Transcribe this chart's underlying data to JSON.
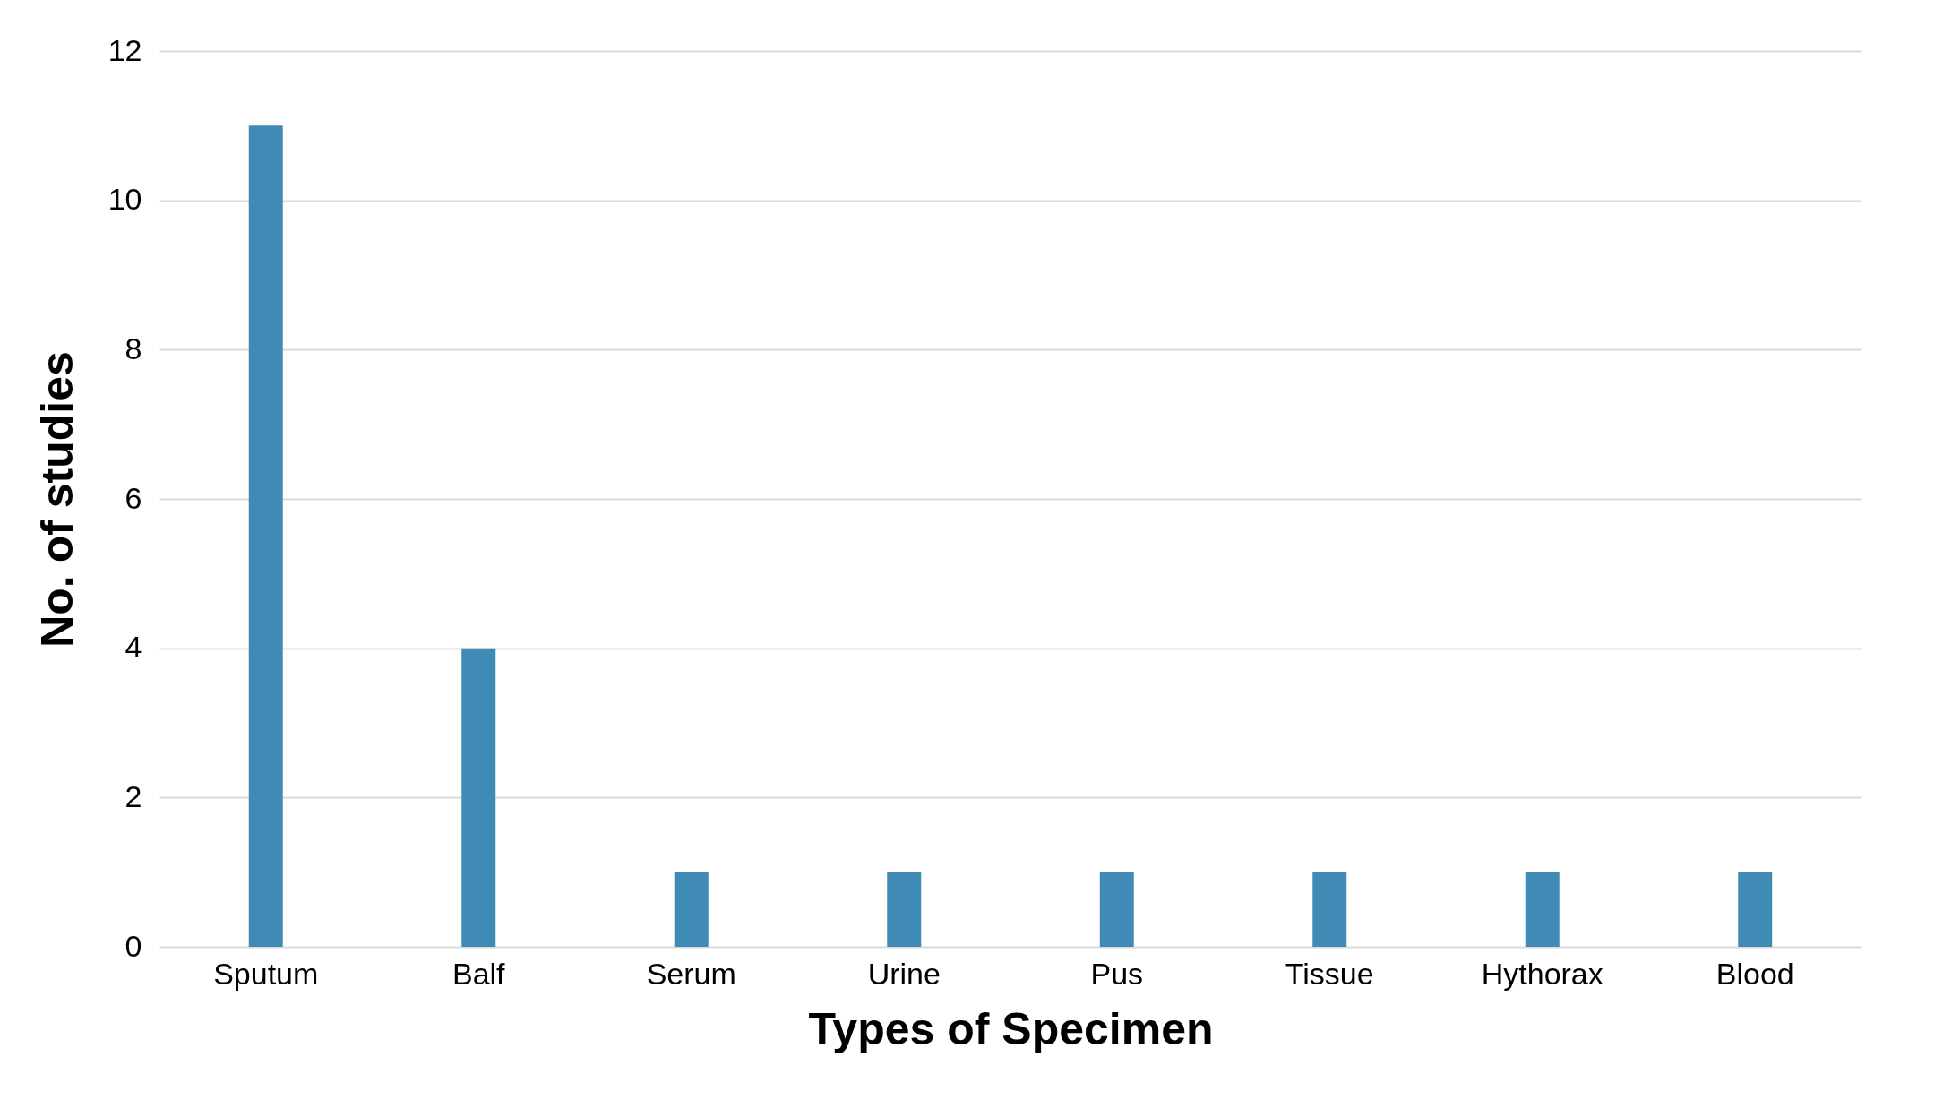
{
  "chart_data": {
    "type": "bar",
    "xlabel": "Types of Specimen",
    "ylabel": "No. of studies",
    "categories": [
      "Sputum",
      "Balf",
      "Serum",
      "Urine",
      "Pus",
      "Tissue",
      "Hythorax",
      "Blood"
    ],
    "values": [
      11,
      4,
      1,
      1,
      1,
      1,
      1,
      1
    ],
    "color": "#408bb5",
    "ylim": [
      0,
      12
    ],
    "yticks": [
      0,
      2,
      4,
      6,
      8,
      10,
      12
    ],
    "grid": "y"
  }
}
